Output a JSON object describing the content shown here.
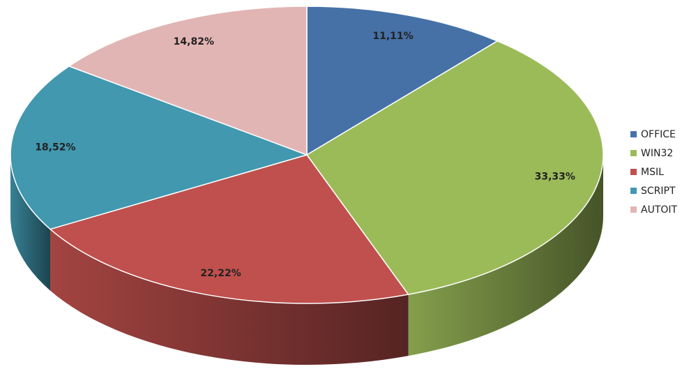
{
  "chart_data": {
    "type": "pie",
    "categories": [
      "OFFICE",
      "WIN32",
      "MSIL",
      "SCRIPT",
      "AUTOIT"
    ],
    "values": [
      11.11,
      33.33,
      22.22,
      18.52,
      14.82
    ],
    "value_labels": [
      "11,11%",
      "33,33%",
      "22,22%",
      "18,52%",
      "14,82%"
    ],
    "colors": [
      "#4671a7",
      "#9bbb59",
      "#c0504d",
      "#4198af",
      "#e2b5b5"
    ],
    "legend": "right"
  }
}
